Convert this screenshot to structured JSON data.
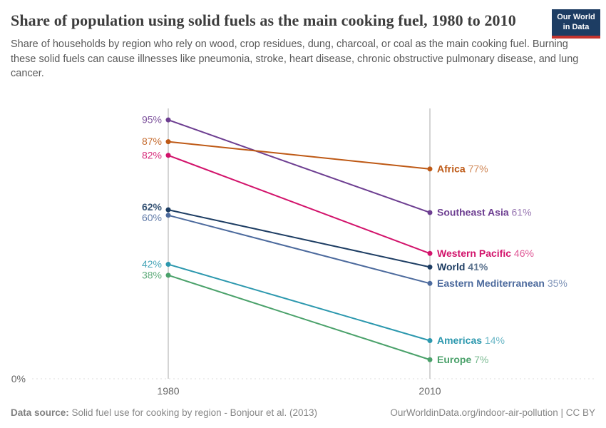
{
  "header": {
    "title": "Share of population using solid fuels as the main cooking fuel, 1980 to 2010",
    "subtitle": "Share of households by region who rely on wood, crop residues, dung, charcoal, or coal as the main cooking fuel. Burning these solid fuels can cause illnesses like pneumonia, stroke, heart disease, chronic obstructive pulmonary disease, and lung cancer.",
    "logo": {
      "line1": "Our World",
      "line2": "in Data",
      "bg_color": "#1d3d63",
      "accent_color": "#c4342e"
    }
  },
  "chart_data": {
    "type": "line",
    "subtype": "slope",
    "x": [
      1980,
      2010
    ],
    "x_labels": [
      "1980",
      "2010"
    ],
    "ylim": [
      0,
      100
    ],
    "baseline_label": "0%",
    "grid": "baseline-dashed-only",
    "legend_position": "right-of-lines",
    "axis_color": "#cfcfcf",
    "tick_text_color": "#666666",
    "series": [
      {
        "name": "Southeast Asia",
        "values": [
          95,
          61
        ],
        "color": "#6d3e91",
        "bold": false
      },
      {
        "name": "Africa",
        "values": [
          87,
          77
        ],
        "color": "#be5915",
        "bold": false
      },
      {
        "name": "Western Pacific",
        "values": [
          82,
          46
        ],
        "color": "#d2136b",
        "bold": false
      },
      {
        "name": "World",
        "values": [
          62,
          41
        ],
        "color": "#1d3d63",
        "bold": true
      },
      {
        "name": "Eastern Mediterranean",
        "values": [
          60,
          35
        ],
        "color": "#4c6a9d",
        "bold": false
      },
      {
        "name": "Americas",
        "values": [
          42,
          14
        ],
        "color": "#2c98ae",
        "bold": false
      },
      {
        "name": "Europe",
        "values": [
          38,
          7
        ],
        "color": "#4aa16a",
        "bold": false
      }
    ]
  },
  "footer": {
    "source_label": "Data source:",
    "source_text": " Solid fuel use for cooking by region - Bonjour et al. (2013)",
    "url": "OurWorldinData.org/indoor-air-pollution",
    "separator": " | ",
    "license": "CC BY"
  }
}
